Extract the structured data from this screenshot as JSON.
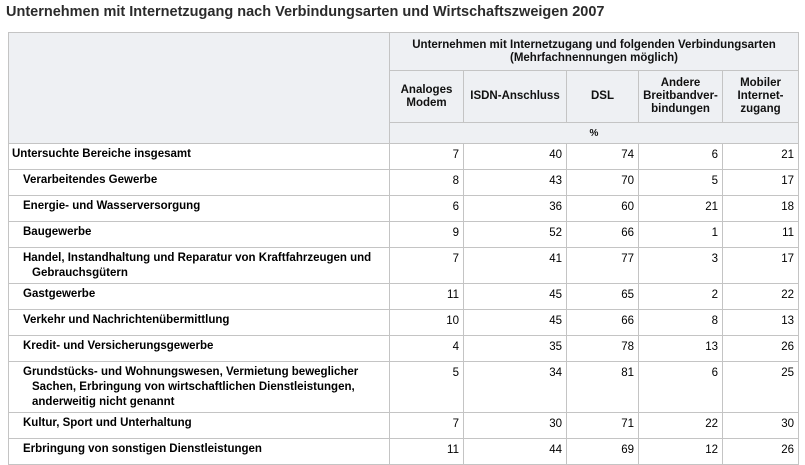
{
  "title": "Unternehmen mit Internetzugang nach Verbindungsarten und Wirtschaftszweigen 2007",
  "header": {
    "group_line1": "Unternehmen mit Internetzugang und folgenden Verbindungsarten",
    "group_line2": "(Mehrfachnennungen möglich)",
    "columns": [
      [
        "Analoges",
        "Modem"
      ],
      [
        "ISDN-Anschluss"
      ],
      [
        "DSL"
      ],
      [
        "Andere",
        "Breitbandver-",
        "bindungen"
      ],
      [
        "Mobiler",
        "Internet-",
        "zugang"
      ]
    ],
    "unit": "%"
  },
  "rows": [
    {
      "label": [
        "Untersuchte Bereiche insgesamt"
      ],
      "indent": false,
      "values": [
        "7",
        "40",
        "74",
        "6",
        "21"
      ]
    },
    {
      "label": [
        "Verarbeitendes Gewerbe"
      ],
      "indent": true,
      "values": [
        "8",
        "43",
        "70",
        "5",
        "17"
      ]
    },
    {
      "label": [
        "Energie- und Wasserversorgung"
      ],
      "indent": true,
      "values": [
        "6",
        "36",
        "60",
        "21",
        "18"
      ]
    },
    {
      "label": [
        "Baugewerbe"
      ],
      "indent": true,
      "values": [
        "9",
        "52",
        "66",
        "1",
        "11"
      ]
    },
    {
      "label": [
        "Handel, Instandhaltung und Reparatur von Kraftfahrzeugen und",
        "Gebrauchsgütern"
      ],
      "indent": true,
      "values": [
        "7",
        "41",
        "77",
        "3",
        "17"
      ]
    },
    {
      "label": [
        "Gastgewerbe"
      ],
      "indent": true,
      "values": [
        "11",
        "45",
        "65",
        "2",
        "22"
      ]
    },
    {
      "label": [
        "Verkehr und Nachrichtenübermittlung"
      ],
      "indent": true,
      "values": [
        "10",
        "45",
        "66",
        "8",
        "13"
      ]
    },
    {
      "label": [
        "Kredit- und Versicherungsgewerbe"
      ],
      "indent": true,
      "values": [
        "4",
        "35",
        "78",
        "13",
        "26"
      ]
    },
    {
      "label": [
        "Grundstücks- und Wohnungswesen, Vermietung beweglicher",
        "Sachen, Erbringung von wirtschaftlichen Dienstleistungen,",
        "anderweitig nicht genannt"
      ],
      "indent": true,
      "values": [
        "5",
        "34",
        "81",
        "6",
        "25"
      ]
    },
    {
      "label": [
        "Kultur, Sport und Unterhaltung"
      ],
      "indent": true,
      "values": [
        "7",
        "30",
        "71",
        "22",
        "30"
      ]
    },
    {
      "label": [
        "Erbringung von sonstigen Dienstleistungen"
      ],
      "indent": true,
      "values": [
        "11",
        "44",
        "69",
        "12",
        "26"
      ]
    }
  ]
}
